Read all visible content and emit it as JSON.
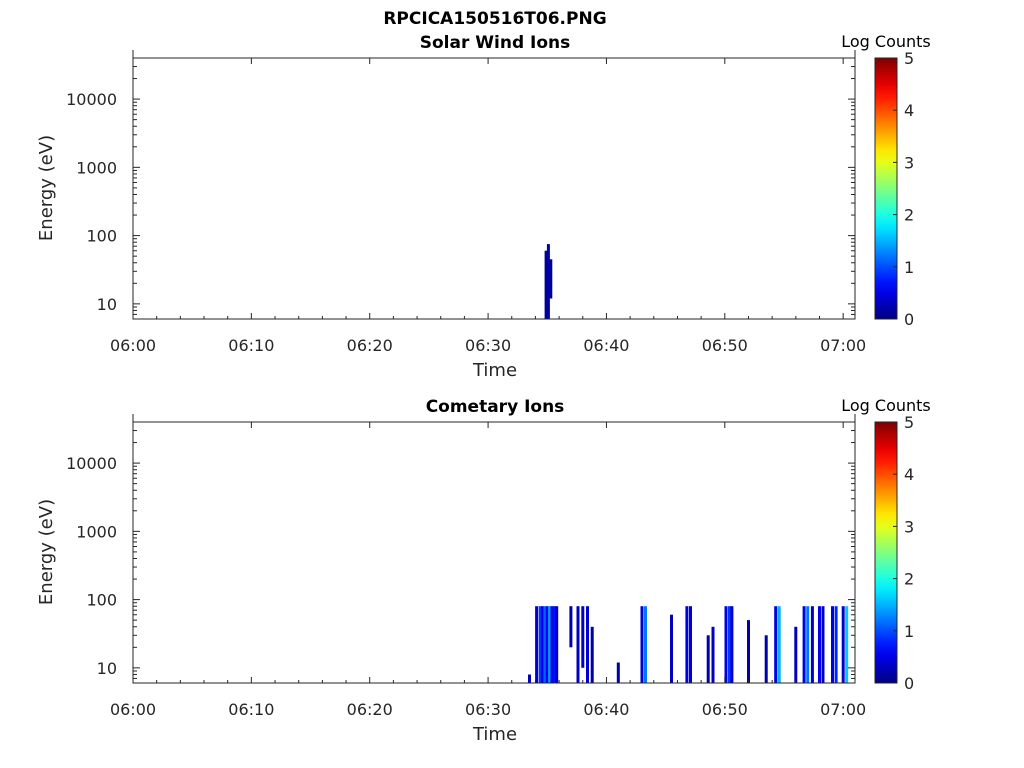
{
  "figure_title": "RPCICA150516T06.PNG",
  "chart_data": [
    {
      "type": "heatmap",
      "title": "Solar Wind Ions",
      "xlabel": "Time",
      "ylabel": "Energy (eV)",
      "x_ticks": [
        "06:00",
        "06:10",
        "06:20",
        "06:30",
        "06:40",
        "06:50",
        "07:00"
      ],
      "x_range_minutes": [
        0,
        61
      ],
      "y_scale": "log",
      "y_ticks": [
        "10",
        "100",
        "1000",
        "10000"
      ],
      "y_range": [
        6,
        40000
      ],
      "colorbar": {
        "label": "Log Counts",
        "range": [
          0,
          5
        ],
        "ticks": [
          "0",
          "1",
          "2",
          "3",
          "4",
          "5"
        ],
        "colormap": "jet"
      },
      "events": [
        {
          "t": 34.9,
          "emin": 6,
          "emax": 60,
          "level": 0.1
        },
        {
          "t": 35.1,
          "emin": 6,
          "emax": 75,
          "level": 0.2
        },
        {
          "t": 35.3,
          "emin": 12,
          "emax": 45,
          "level": 0.1
        }
      ]
    },
    {
      "type": "heatmap",
      "title": "Cometary Ions",
      "xlabel": "Time",
      "ylabel": "Energy (eV)",
      "x_ticks": [
        "06:00",
        "06:10",
        "06:20",
        "06:30",
        "06:40",
        "06:50",
        "07:00"
      ],
      "x_range_minutes": [
        0,
        61
      ],
      "y_scale": "log",
      "y_ticks": [
        "10",
        "100",
        "1000",
        "10000"
      ],
      "y_range": [
        6,
        40000
      ],
      "colorbar": {
        "label": "Log Counts",
        "range": [
          0,
          5
        ],
        "ticks": [
          "0",
          "1",
          "2",
          "3",
          "4",
          "5"
        ],
        "colormap": "jet"
      },
      "events": [
        {
          "t": 33.5,
          "emin": 6,
          "emax": 8,
          "level": 0.3
        },
        {
          "t": 34.1,
          "emin": 6,
          "emax": 80,
          "level": 0.4
        },
        {
          "t": 34.4,
          "emin": 6,
          "emax": 80,
          "level": 0.9
        },
        {
          "t": 34.6,
          "emin": 6,
          "emax": 80,
          "level": 0.5
        },
        {
          "t": 34.8,
          "emin": 6,
          "emax": 80,
          "level": 1.1
        },
        {
          "t": 35.0,
          "emin": 6,
          "emax": 80,
          "level": 0.6
        },
        {
          "t": 35.2,
          "emin": 6,
          "emax": 80,
          "level": 1.4
        },
        {
          "t": 35.4,
          "emin": 6,
          "emax": 80,
          "level": 0.5
        },
        {
          "t": 35.6,
          "emin": 6,
          "emax": 80,
          "level": 0.7
        },
        {
          "t": 35.8,
          "emin": 6,
          "emax": 80,
          "level": 0.4
        },
        {
          "t": 37.0,
          "emin": 20,
          "emax": 80,
          "level": 0.2
        },
        {
          "t": 37.6,
          "emin": 6,
          "emax": 80,
          "level": 0.3
        },
        {
          "t": 38.0,
          "emin": 10,
          "emax": 80,
          "level": 0.3
        },
        {
          "t": 38.4,
          "emin": 6,
          "emax": 80,
          "level": 0.4
        },
        {
          "t": 38.8,
          "emin": 6,
          "emax": 40,
          "level": 0.2
        },
        {
          "t": 41.0,
          "emin": 6,
          "emax": 12,
          "level": 0.2
        },
        {
          "t": 43.0,
          "emin": 6,
          "emax": 80,
          "level": 0.4
        },
        {
          "t": 43.3,
          "emin": 6,
          "emax": 80,
          "level": 1.2
        },
        {
          "t": 45.5,
          "emin": 6,
          "emax": 60,
          "level": 0.3
        },
        {
          "t": 46.8,
          "emin": 6,
          "emax": 80,
          "level": 0.5
        },
        {
          "t": 47.1,
          "emin": 6,
          "emax": 80,
          "level": 0.4
        },
        {
          "t": 48.6,
          "emin": 6,
          "emax": 30,
          "level": 0.2
        },
        {
          "t": 49.0,
          "emin": 6,
          "emax": 40,
          "level": 0.3
        },
        {
          "t": 50.1,
          "emin": 6,
          "emax": 80,
          "level": 0.5
        },
        {
          "t": 50.4,
          "emin": 6,
          "emax": 80,
          "level": 0.9
        },
        {
          "t": 50.6,
          "emin": 6,
          "emax": 80,
          "level": 0.4
        },
        {
          "t": 52.0,
          "emin": 6,
          "emax": 50,
          "level": 0.2
        },
        {
          "t": 53.5,
          "emin": 6,
          "emax": 30,
          "level": 0.2
        },
        {
          "t": 54.3,
          "emin": 6,
          "emax": 80,
          "level": 0.5
        },
        {
          "t": 54.6,
          "emin": 6,
          "emax": 80,
          "level": 1.5
        },
        {
          "t": 56.0,
          "emin": 6,
          "emax": 40,
          "level": 0.3
        },
        {
          "t": 56.7,
          "emin": 6,
          "emax": 80,
          "level": 0.5
        },
        {
          "t": 57.0,
          "emin": 6,
          "emax": 80,
          "level": 1.2
        },
        {
          "t": 57.4,
          "emin": 6,
          "emax": 80,
          "level": 0.4
        },
        {
          "t": 58.0,
          "emin": 6,
          "emax": 80,
          "level": 0.6
        },
        {
          "t": 58.3,
          "emin": 6,
          "emax": 80,
          "level": 0.3
        },
        {
          "t": 59.1,
          "emin": 6,
          "emax": 80,
          "level": 0.5
        },
        {
          "t": 59.4,
          "emin": 6,
          "emax": 80,
          "level": 0.8
        },
        {
          "t": 60.0,
          "emin": 6,
          "emax": 80,
          "level": 0.4
        },
        {
          "t": 60.3,
          "emin": 6,
          "emax": 80,
          "level": 1.6
        }
      ]
    }
  ]
}
